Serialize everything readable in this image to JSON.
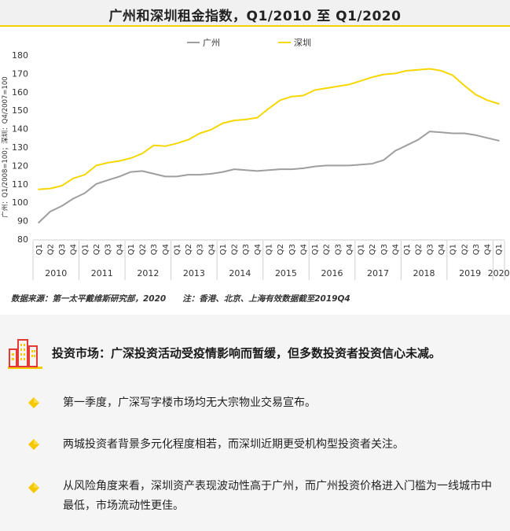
{
  "chart_data": {
    "type": "line",
    "title": "广州和深圳租金指数，Q1/2010 至 Q1/2020",
    "ylabel": "广州：Q1/2008=100；深圳：Q4/2007=100",
    "ylim": [
      80,
      180
    ],
    "yticks": [
      80,
      90,
      100,
      110,
      120,
      130,
      140,
      150,
      160,
      170,
      180
    ],
    "x": [
      "Q1",
      "Q2",
      "Q3",
      "Q4",
      "Q1",
      "Q2",
      "Q3",
      "Q4",
      "Q1",
      "Q2",
      "Q3",
      "Q4",
      "Q1",
      "Q2",
      "Q3",
      "Q4",
      "Q1",
      "Q2",
      "Q3",
      "Q4",
      "Q1",
      "Q2",
      "Q3",
      "Q4",
      "Q1",
      "Q2",
      "Q3",
      "Q4",
      "Q1",
      "Q2",
      "Q3",
      "Q4",
      "Q1",
      "Q2",
      "Q3",
      "Q4",
      "Q1",
      "Q2",
      "Q3",
      "Q4",
      "Q1"
    ],
    "years": [
      {
        "label": "2010",
        "start": 0,
        "count": 4
      },
      {
        "label": "2011",
        "start": 4,
        "count": 4
      },
      {
        "label": "2012",
        "start": 8,
        "count": 4
      },
      {
        "label": "2013",
        "start": 12,
        "count": 4
      },
      {
        "label": "2014",
        "start": 16,
        "count": 4
      },
      {
        "label": "2015",
        "start": 20,
        "count": 4
      },
      {
        "label": "2016",
        "start": 24,
        "count": 4
      },
      {
        "label": "2017",
        "start": 28,
        "count": 4
      },
      {
        "label": "2018",
        "start": 32,
        "count": 4
      },
      {
        "label": "2019",
        "start": 36,
        "count": 4
      },
      {
        "label": "2020",
        "start": 40,
        "count": 1
      }
    ],
    "series": [
      {
        "name": "广州",
        "color": "#9e9e9e",
        "values": [
          89,
          95,
          98,
          102,
          105,
          110,
          112,
          114,
          116.5,
          117,
          115.5,
          114,
          114,
          115,
          115,
          115.5,
          116.5,
          118,
          117.5,
          117,
          117.5,
          118,
          118,
          118.5,
          119.5,
          120,
          120,
          120,
          120.5,
          121,
          123,
          128,
          131,
          134,
          138.5,
          138,
          137.5,
          137.5,
          136.5,
          135,
          133.5
        ]
      },
      {
        "name": "深圳",
        "color": "#f6d700",
        "values": [
          107,
          107.5,
          109,
          113,
          115,
          120,
          121.5,
          122.5,
          124,
          126.5,
          131,
          130.5,
          132,
          134,
          137.5,
          139.5,
          143,
          144.5,
          145,
          146,
          151,
          155.5,
          157.5,
          158,
          161,
          162,
          163,
          164,
          166,
          168,
          169.5,
          170,
          171.5,
          172,
          172.5,
          171.5,
          169,
          163.5,
          158.5,
          155.5,
          153.5
        ]
      }
    ],
    "legend_position": "top-center",
    "grid": false
  },
  "source_note": "数据来源：第一太平戴维斯研究部，2020　　注：香港、北京、上海有效数据截至2019Q4",
  "section": {
    "heading": "投资市场：广深投资活动受疫情影响而暂缓，但多数投资者投资信心未减。",
    "icon": "city-buildings-icon",
    "bullets": [
      "第一季度，广深写字楼市场均无大宗物业交易宣布。",
      "两城投资者背景多元化程度相若，而深圳近期更受机构型投资者关注。",
      "从风险角度来看，深圳资产表现波动性高于广州，而广州投资价格进入门槛为一线城市中最低，市场流动性更佳。"
    ]
  }
}
